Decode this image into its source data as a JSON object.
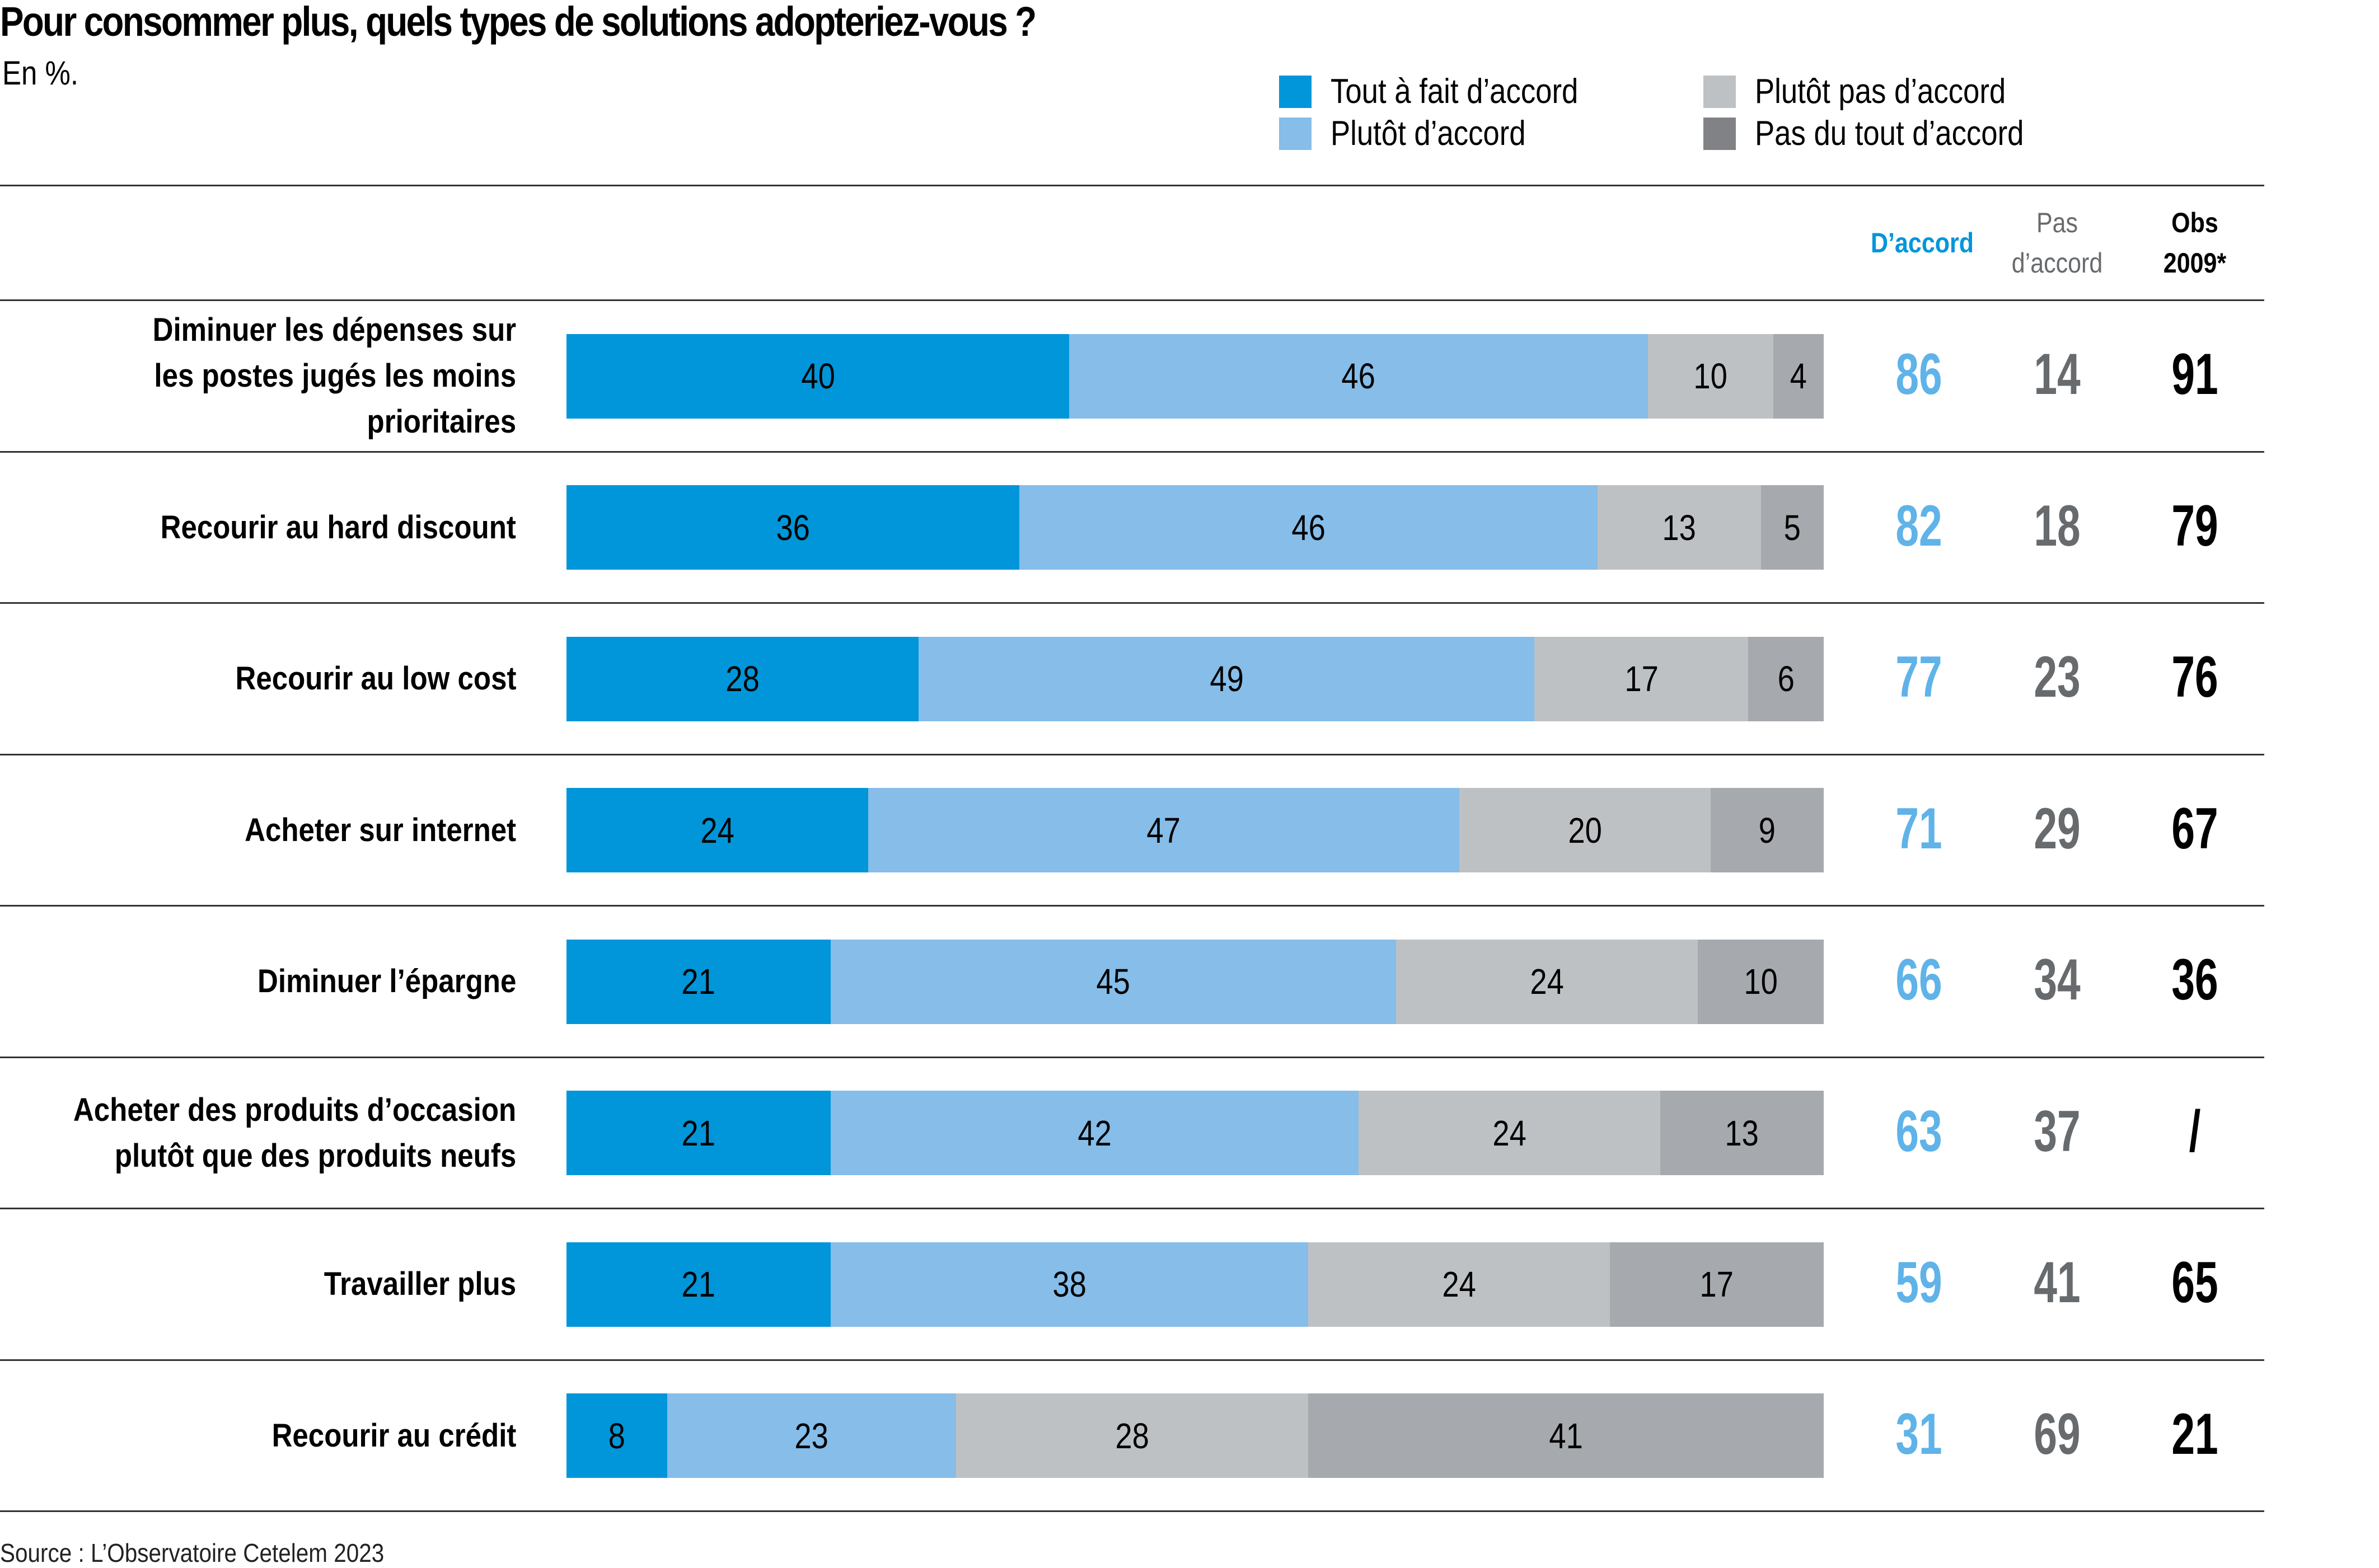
{
  "chart_data": {
    "type": "bar",
    "orientation": "horizontal-stacked-100",
    "title": "Pour consommer plus, quels types de solutions adopteriez-vous ?",
    "subtitle": "En %.",
    "xlabel": "",
    "ylabel": "",
    "xlim": [
      0,
      100
    ],
    "grid": false,
    "legend_position": "top-right",
    "legend": [
      {
        "name": "Tout à fait d’accord",
        "color": "#0096d9"
      },
      {
        "name": "Plutôt d’accord",
        "color": "#86bde9"
      },
      {
        "name": "Plutôt pas d’accord",
        "color": "#bec1c4"
      },
      {
        "name": "Pas du tout d’accord",
        "color": "#808285"
      }
    ],
    "categories": [
      "Diminuer les dépenses sur les postes jugés les moins prioritaires",
      "Recourir au hard discount",
      "Recourir au low cost",
      "Acheter sur internet",
      "Diminuer l’épargne",
      "Acheter des produits d’occasion plutôt que des produits neufs",
      "Travailler plus",
      "Recourir au crédit"
    ],
    "series": [
      {
        "name": "Tout à fait d’accord",
        "values": [
          40,
          36,
          28,
          24,
          21,
          21,
          21,
          8
        ]
      },
      {
        "name": "Plutôt d’accord",
        "values": [
          46,
          46,
          49,
          47,
          45,
          42,
          38,
          23
        ]
      },
      {
        "name": "Plutôt pas d’accord",
        "values": [
          10,
          13,
          17,
          20,
          24,
          24,
          24,
          28
        ]
      },
      {
        "name": "Pas du tout d’accord",
        "values": [
          4,
          5,
          6,
          9,
          10,
          13,
          17,
          41
        ]
      }
    ],
    "table_columns": [
      {
        "key": "accord",
        "label": "D’accord"
      },
      {
        "key": "pas_accord",
        "label_line1": "Pas",
        "label_line2": "d’accord"
      },
      {
        "key": "obs2009",
        "label_line1": "Obs",
        "label_line2": "2009*"
      }
    ],
    "table_values": {
      "accord": [
        "86",
        "82",
        "77",
        "71",
        "66",
        "63",
        "59",
        "31"
      ],
      "pas_accord": [
        "14",
        "18",
        "23",
        "29",
        "34",
        "37",
        "41",
        "69"
      ],
      "obs2009": [
        "91",
        "79",
        "76",
        "67",
        "36",
        "/",
        "65",
        "21"
      ]
    },
    "source": "Source : L’Observatoire Cetelem 2023"
  },
  "row_labels": [
    [
      "Diminuer les dépenses sur",
      "les postes jugés les moins",
      "prioritaires"
    ],
    [
      "Recourir au hard discount"
    ],
    [
      "Recourir au low cost"
    ],
    [
      "Acheter sur internet"
    ],
    [
      "Diminuer l’épargne"
    ],
    [
      "Acheter des produits d’occasion",
      "plutôt que des produits neufs"
    ],
    [
      "Travailler plus"
    ],
    [
      "Recourir au crédit"
    ]
  ],
  "colors": {
    "seg": [
      "#0096d9",
      "#86bde9",
      "#bec1c4",
      "#a6a9ad"
    ],
    "legend_dark_gray": "#808285",
    "accord_header": "#0096d9",
    "accord_num": "#5fb3e8",
    "pas_accord": "#676b6e",
    "obs": "#000000"
  }
}
